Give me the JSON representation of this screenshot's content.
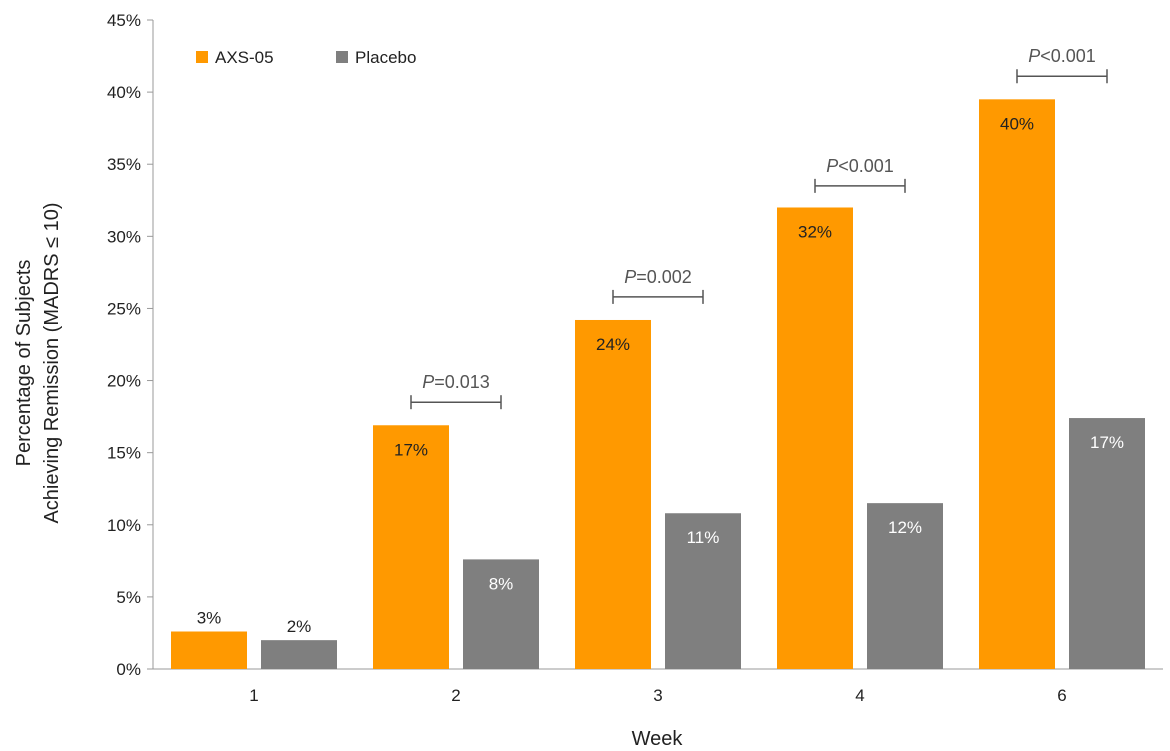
{
  "chart_data": {
    "type": "bar",
    "xlabel": "Week",
    "ylabel_line1": "Percentage of Subjects",
    "ylabel_line2": "Achieving Remission (MADRS ≤ 10)",
    "categories": [
      "1",
      "2",
      "3",
      "4",
      "6"
    ],
    "ylim": [
      0,
      45
    ],
    "ytick_step": 5,
    "ytick_suffix": "%",
    "legend_position": "top-left",
    "series": [
      {
        "name": "AXS-05",
        "color": "#FF9900",
        "values": [
          2.6,
          16.9,
          24.2,
          32.0,
          39.5
        ],
        "labels": [
          "3%",
          "17%",
          "24%",
          "32%",
          "40%"
        ],
        "label_color": "#222222"
      },
      {
        "name": "Placebo",
        "color": "#7F7F7F",
        "values": [
          2.0,
          7.6,
          10.8,
          11.5,
          17.4
        ],
        "labels": [
          "2%",
          "8%",
          "11%",
          "12%",
          "17%"
        ],
        "label_color": "#ffffff"
      }
    ],
    "annotations": [
      {
        "category": "2",
        "p_italic": "P",
        "p_rest": "=0.013",
        "y": 18.5
      },
      {
        "category": "3",
        "p_italic": "P",
        "p_rest": "=0.002",
        "y": 25.8
      },
      {
        "category": "4",
        "p_italic": "P",
        "p_rest": "<0.001",
        "y": 33.5
      },
      {
        "category": "6",
        "p_italic": "P",
        "p_rest": "<0.001",
        "y": 41.1
      }
    ]
  }
}
